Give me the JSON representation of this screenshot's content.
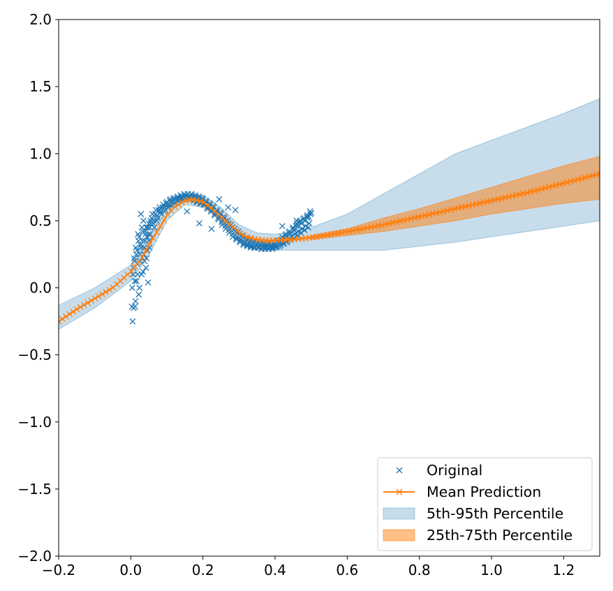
{
  "chart_data": {
    "type": "line",
    "title": "",
    "xlabel": "",
    "ylabel": "",
    "xlim": [
      -0.2,
      1.3
    ],
    "ylim": [
      -2.0,
      2.0
    ],
    "grid": false,
    "legend_position": "bottom-right",
    "x_ticks": [
      {
        "value": -0.2,
        "label": "−0.2"
      },
      {
        "value": 0.0,
        "label": "0.0"
      },
      {
        "value": 0.2,
        "label": "0.2"
      },
      {
        "value": 0.4,
        "label": "0.4"
      },
      {
        "value": 0.6,
        "label": "0.6"
      },
      {
        "value": 0.8,
        "label": "0.8"
      },
      {
        "value": 1.0,
        "label": "1.0"
      },
      {
        "value": 1.2,
        "label": "1.2"
      }
    ],
    "y_ticks": [
      {
        "value": 2.0,
        "label": "2.0"
      },
      {
        "value": 1.5,
        "label": "1.5"
      },
      {
        "value": 1.0,
        "label": "1.0"
      },
      {
        "value": 0.5,
        "label": "0.5"
      },
      {
        "value": 0.0,
        "label": "0.0"
      },
      {
        "value": -0.5,
        "label": "−0.5"
      },
      {
        "value": -1.0,
        "label": "−1.0"
      },
      {
        "value": -1.5,
        "label": "−1.5"
      },
      {
        "value": -2.0,
        "label": "−2.0"
      }
    ],
    "colors": {
      "original": "#1f77b4",
      "mean": "#ff7f0e",
      "band_outer": "#1f77b4",
      "band_inner": "#ff7f0e"
    },
    "legend": [
      {
        "key": "original",
        "label": "Original"
      },
      {
        "key": "mean",
        "label": "Mean Prediction"
      },
      {
        "key": "band_outer",
        "label": "5th-95th Percentile"
      },
      {
        "key": "band_inner",
        "label": "25th-75th Percentile"
      }
    ],
    "mean_prediction": {
      "name": "Mean Prediction",
      "x": [
        -0.2,
        -0.15,
        -0.1,
        -0.05,
        0.0,
        0.03,
        0.05,
        0.08,
        0.1,
        0.12,
        0.15,
        0.17,
        0.2,
        0.22,
        0.25,
        0.28,
        0.3,
        0.32,
        0.35,
        0.38,
        0.4,
        0.45,
        0.5,
        0.55,
        0.6,
        0.7,
        0.8,
        0.9,
        1.0,
        1.1,
        1.2,
        1.3
      ],
      "y": [
        -0.25,
        -0.16,
        -0.08,
        0.0,
        0.12,
        0.22,
        0.32,
        0.45,
        0.54,
        0.6,
        0.65,
        0.66,
        0.64,
        0.6,
        0.53,
        0.46,
        0.41,
        0.38,
        0.36,
        0.35,
        0.355,
        0.36,
        0.375,
        0.395,
        0.42,
        0.47,
        0.53,
        0.59,
        0.65,
        0.71,
        0.78,
        0.85
      ]
    },
    "band_5_95": {
      "name": "5th-95th Percentile",
      "x": [
        -0.2,
        -0.1,
        0.0,
        0.05,
        0.1,
        0.15,
        0.2,
        0.25,
        0.3,
        0.35,
        0.4,
        0.45,
        0.5,
        0.6,
        0.7,
        0.8,
        0.9,
        1.0,
        1.1,
        1.2,
        1.3
      ],
      "lower": [
        -0.31,
        -0.15,
        0.05,
        0.24,
        0.5,
        0.62,
        0.6,
        0.5,
        0.37,
        0.3,
        0.28,
        0.28,
        0.28,
        0.28,
        0.28,
        0.31,
        0.34,
        0.38,
        0.42,
        0.46,
        0.5
      ],
      "upper": [
        -0.13,
        0.0,
        0.17,
        0.38,
        0.6,
        0.7,
        0.69,
        0.6,
        0.47,
        0.41,
        0.4,
        0.42,
        0.45,
        0.55,
        0.7,
        0.85,
        1.0,
        1.1,
        1.2,
        1.3,
        1.41
      ]
    },
    "band_25_75": {
      "name": "25th-75th Percentile",
      "x": [
        0.5,
        0.6,
        0.7,
        0.8,
        0.9,
        1.0,
        1.1,
        1.2,
        1.3
      ],
      "lower": [
        0.36,
        0.39,
        0.42,
        0.46,
        0.5,
        0.55,
        0.59,
        0.63,
        0.66
      ],
      "upper": [
        0.39,
        0.44,
        0.52,
        0.59,
        0.67,
        0.75,
        0.83,
        0.91,
        0.98
      ]
    },
    "original": {
      "name": "Original",
      "x": [
        0.005,
        0.008,
        0.01,
        0.012,
        0.014,
        0.016,
        0.018,
        0.02,
        0.022,
        0.025,
        0.028,
        0.03,
        0.032,
        0.035,
        0.038,
        0.04,
        0.042,
        0.045,
        0.048,
        0.05,
        0.052,
        0.055,
        0.06,
        0.065,
        0.07,
        0.075,
        0.08,
        0.085,
        0.09,
        0.095,
        0.1,
        0.105,
        0.11,
        0.115,
        0.12,
        0.125,
        0.13,
        0.135,
        0.14,
        0.145,
        0.15,
        0.155,
        0.16,
        0.165,
        0.17,
        0.175,
        0.18,
        0.185,
        0.19,
        0.195,
        0.2,
        0.205,
        0.21,
        0.215,
        0.22,
        0.225,
        0.23,
        0.235,
        0.24,
        0.245,
        0.25,
        0.255,
        0.26,
        0.265,
        0.27,
        0.275,
        0.28,
        0.285,
        0.29,
        0.295,
        0.3,
        0.305,
        0.31,
        0.315,
        0.32,
        0.325,
        0.33,
        0.335,
        0.34,
        0.345,
        0.35,
        0.355,
        0.36,
        0.365,
        0.37,
        0.375,
        0.38,
        0.385,
        0.39,
        0.395,
        0.4,
        0.405,
        0.41,
        0.415,
        0.42,
        0.425,
        0.43,
        0.435,
        0.44,
        0.445,
        0.45,
        0.455,
        0.46,
        0.465,
        0.47,
        0.475,
        0.48,
        0.485,
        0.49,
        0.495,
        0.5,
        0.003,
        0.006,
        0.009,
        0.013,
        0.017,
        0.021,
        0.024,
        0.027,
        0.031,
        0.034,
        0.037,
        0.041,
        0.044,
        0.047,
        0.051,
        0.054,
        0.058,
        0.062,
        0.068,
        0.072,
        0.078,
        0.082,
        0.088,
        0.092,
        0.098,
        0.102,
        0.108,
        0.112,
        0.118,
        0.122,
        0.128,
        0.132,
        0.138,
        0.142,
        0.148,
        0.152,
        0.158,
        0.162,
        0.168,
        0.172,
        0.178,
        0.182,
        0.188,
        0.192,
        0.198,
        0.202,
        0.208,
        0.212,
        0.218,
        0.222,
        0.228,
        0.232,
        0.238,
        0.242,
        0.248,
        0.252,
        0.258,
        0.262,
        0.268,
        0.272,
        0.278,
        0.282,
        0.288,
        0.292,
        0.298,
        0.302,
        0.308,
        0.312,
        0.318,
        0.322,
        0.328,
        0.332,
        0.338,
        0.342,
        0.348,
        0.352,
        0.358,
        0.362,
        0.368,
        0.372,
        0.378,
        0.382,
        0.388,
        0.392,
        0.398,
        0.402,
        0.408,
        0.412,
        0.418,
        0.422,
        0.428,
        0.432,
        0.438,
        0.442,
        0.448,
        0.452,
        0.458,
        0.462,
        0.468,
        0.472,
        0.478,
        0.482,
        0.488,
        0.492,
        0.498,
        0.004,
        0.007,
        0.011,
        0.015,
        0.019,
        0.023,
        0.026,
        0.029,
        0.033,
        0.036,
        0.039,
        0.043,
        0.046,
        0.049,
        0.053,
        0.056,
        0.063,
        0.073,
        0.083,
        0.093,
        0.103,
        0.113,
        0.123,
        0.133,
        0.143,
        0.153,
        0.163,
        0.173,
        0.183,
        0.193,
        0.203,
        0.213,
        0.223,
        0.233,
        0.243,
        0.253,
        0.263,
        0.273,
        0.283,
        0.293,
        0.303,
        0.313,
        0.323,
        0.333,
        0.343,
        0.353,
        0.363,
        0.373,
        0.383,
        0.393,
        0.403,
        0.413,
        0.423,
        0.433,
        0.443,
        0.453,
        0.463,
        0.473,
        0.483,
        0.493,
        0.156,
        0.19,
        0.224,
        0.245,
        0.27,
        0.29,
        0.38,
        0.42,
        0.46,
        0.49,
        0.497
      ],
      "y": [
        -0.25,
        -0.15,
        0.2,
        -0.14,
        0.3,
        0.05,
        0.18,
        0.4,
        -0.05,
        0.25,
        0.55,
        0.1,
        0.35,
        0.5,
        0.2,
        0.42,
        0.15,
        0.38,
        0.04,
        0.48,
        0.3,
        0.5,
        0.55,
        0.45,
        0.58,
        0.52,
        0.6,
        0.55,
        0.62,
        0.58,
        0.64,
        0.6,
        0.66,
        0.62,
        0.67,
        0.64,
        0.68,
        0.65,
        0.68,
        0.66,
        0.69,
        0.67,
        0.68,
        0.66,
        0.69,
        0.65,
        0.68,
        0.64,
        0.67,
        0.63,
        0.66,
        0.62,
        0.64,
        0.6,
        0.62,
        0.58,
        0.6,
        0.56,
        0.57,
        0.53,
        0.55,
        0.5,
        0.52,
        0.47,
        0.48,
        0.44,
        0.45,
        0.41,
        0.42,
        0.38,
        0.4,
        0.36,
        0.38,
        0.34,
        0.36,
        0.32,
        0.35,
        0.31,
        0.34,
        0.3,
        0.33,
        0.3,
        0.32,
        0.3,
        0.32,
        0.3,
        0.31,
        0.3,
        0.32,
        0.3,
        0.33,
        0.31,
        0.35,
        0.32,
        0.38,
        0.33,
        0.4,
        0.35,
        0.42,
        0.38,
        0.45,
        0.4,
        0.48,
        0.42,
        0.5,
        0.44,
        0.52,
        0.46,
        0.54,
        0.48,
        0.56,
        -0.14,
        0.1,
        0.22,
        -0.1,
        0.28,
        0.35,
        0.0,
        0.32,
        0.45,
        0.12,
        0.3,
        0.4,
        0.22,
        0.45,
        0.35,
        0.4,
        0.52,
        0.48,
        0.55,
        0.5,
        0.58,
        0.56,
        0.6,
        0.57,
        0.63,
        0.6,
        0.65,
        0.61,
        0.66,
        0.63,
        0.67,
        0.65,
        0.69,
        0.66,
        0.7,
        0.68,
        0.7,
        0.67,
        0.7,
        0.66,
        0.69,
        0.64,
        0.68,
        0.63,
        0.67,
        0.62,
        0.65,
        0.59,
        0.63,
        0.57,
        0.61,
        0.55,
        0.58,
        0.52,
        0.56,
        0.49,
        0.53,
        0.46,
        0.5,
        0.43,
        0.47,
        0.4,
        0.44,
        0.37,
        0.42,
        0.35,
        0.39,
        0.33,
        0.37,
        0.32,
        0.36,
        0.31,
        0.35,
        0.3,
        0.34,
        0.3,
        0.33,
        0.29,
        0.33,
        0.29,
        0.32,
        0.29,
        0.31,
        0.29,
        0.32,
        0.3,
        0.34,
        0.31,
        0.36,
        0.33,
        0.39,
        0.34,
        0.41,
        0.36,
        0.44,
        0.37,
        0.46,
        0.39,
        0.49,
        0.41,
        0.51,
        0.43,
        0.53,
        0.45,
        0.55,
        0.0,
        0.15,
        0.05,
        0.25,
        0.1,
        0.38,
        0.2,
        0.3,
        0.42,
        0.25,
        0.35,
        0.45,
        0.28,
        0.4,
        0.45,
        0.48,
        0.5,
        0.54,
        0.57,
        0.6,
        0.62,
        0.64,
        0.66,
        0.67,
        0.68,
        0.68,
        0.68,
        0.67,
        0.66,
        0.65,
        0.63,
        0.6,
        0.57,
        0.54,
        0.51,
        0.47,
        0.44,
        0.41,
        0.38,
        0.36,
        0.34,
        0.32,
        0.31,
        0.3,
        0.3,
        0.3,
        0.29,
        0.3,
        0.3,
        0.3,
        0.31,
        0.33,
        0.36,
        0.38,
        0.41,
        0.43,
        0.46,
        0.48,
        0.5,
        0.53,
        0.57,
        0.48,
        0.44,
        0.66,
        0.6,
        0.58,
        0.34,
        0.46,
        0.5,
        0.52,
        0.57
      ]
    }
  }
}
